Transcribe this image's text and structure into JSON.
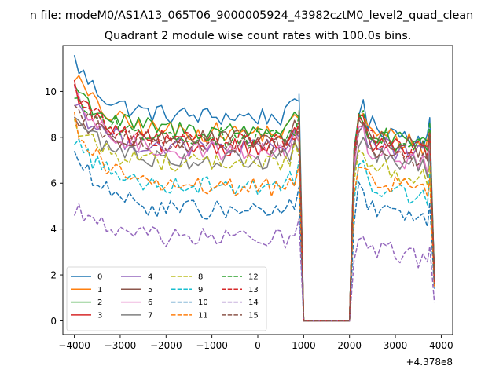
{
  "chart_data": {
    "type": "line",
    "suptitle": "n file: modeM0/AS1A13_065T06_9000005924_43982cztM0_level2_quad_clean",
    "title": "Quadrant 2 module wise count rates with 100.0s bins.",
    "xlabel": "",
    "ylabel": "",
    "x_offset_label": "+4.378e8",
    "xlim": [
      -4250,
      4250
    ],
    "ylim": [
      -0.6,
      12.0
    ],
    "xticks": [
      -4000,
      -3000,
      -2000,
      -1000,
      0,
      1000,
      2000,
      3000,
      4000
    ],
    "xtick_labels": [
      "−4000",
      "−3000",
      "−2000",
      "−1000",
      "0",
      "1000",
      "2000",
      "3000",
      "4000"
    ],
    "yticks": [
      0,
      2,
      4,
      6,
      8,
      10
    ],
    "ytick_labels": [
      "0",
      "2",
      "4",
      "6",
      "8",
      "10"
    ],
    "grid": false,
    "legend_position": "lower-left",
    "legend_columns": 4,
    "segments": [
      {
        "start": -4000,
        "end": 1000,
        "step": 100
      },
      {
        "gap": [
          1000,
          2100
        ],
        "value": 0
      },
      {
        "start": 2100,
        "end": 3850,
        "step": 100
      }
    ],
    "series": [
      {
        "name": "0",
        "color": "#1f77b4",
        "dash": "solid",
        "level": 8.9,
        "start_level": 11.4,
        "end_level": 1.9,
        "seg2_level": 8.7
      },
      {
        "name": "1",
        "color": "#ff7f0e",
        "dash": "solid",
        "level": 8.2,
        "start_level": 10.8,
        "end_level": 1.6,
        "seg2_level": 8.4
      },
      {
        "name": "2",
        "color": "#2ca02c",
        "dash": "solid",
        "level": 8.3,
        "start_level": 10.3,
        "end_level": 2.0,
        "seg2_level": 8.3
      },
      {
        "name": "3",
        "color": "#d62728",
        "dash": "solid",
        "level": 7.6,
        "start_level": 10.2,
        "end_level": 1.8,
        "seg2_level": 8.0
      },
      {
        "name": "4",
        "color": "#9467bd",
        "dash": "solid",
        "level": 7.5,
        "start_level": 9.6,
        "end_level": 1.7,
        "seg2_level": 7.9
      },
      {
        "name": "5",
        "color": "#8c564b",
        "dash": "solid",
        "level": 7.9,
        "start_level": 8.8,
        "end_level": 2.1,
        "seg2_level": 8.2
      },
      {
        "name": "6",
        "color": "#e377c2",
        "dash": "solid",
        "level": 7.4,
        "start_level": 9.8,
        "end_level": 1.6,
        "seg2_level": 7.6
      },
      {
        "name": "7",
        "color": "#7f7f7f",
        "dash": "solid",
        "level": 7.0,
        "start_level": 9.0,
        "end_level": 1.5,
        "seg2_level": 7.4
      },
      {
        "name": "8",
        "color": "#bcbd22",
        "dash": "dashed",
        "level": 6.9,
        "start_level": 8.6,
        "end_level": 1.7,
        "seg2_level": 7.0
      },
      {
        "name": "9",
        "color": "#17becf",
        "dash": "dashed",
        "level": 5.9,
        "start_level": 8.0,
        "end_level": 1.6,
        "seg2_level": 6.1
      },
      {
        "name": "10",
        "color": "#1f77b4",
        "dash": "dashed",
        "level": 4.8,
        "start_level": 7.4,
        "end_level": 1.4,
        "seg2_level": 5.1
      },
      {
        "name": "11",
        "color": "#ff7f0e",
        "dash": "dashed",
        "level": 5.8,
        "start_level": 8.8,
        "end_level": 1.5,
        "seg2_level": 6.4
      },
      {
        "name": "12",
        "color": "#2ca02c",
        "dash": "dashed",
        "level": 8.0,
        "start_level": 9.9,
        "end_level": 1.8,
        "seg2_level": 8.3
      },
      {
        "name": "13",
        "color": "#d62728",
        "dash": "dashed",
        "level": 7.8,
        "start_level": 10.2,
        "end_level": 1.7,
        "seg2_level": 8.1
      },
      {
        "name": "14",
        "color": "#9467bd",
        "dash": "dashed",
        "level": 3.6,
        "start_level": 5.0,
        "end_level": 0.8,
        "seg2_level": 3.4
      },
      {
        "name": "15",
        "color": "#8c564b",
        "dash": "dashed",
        "level": 7.6,
        "start_level": 9.5,
        "end_level": 1.6,
        "seg2_level": 7.8
      }
    ]
  }
}
